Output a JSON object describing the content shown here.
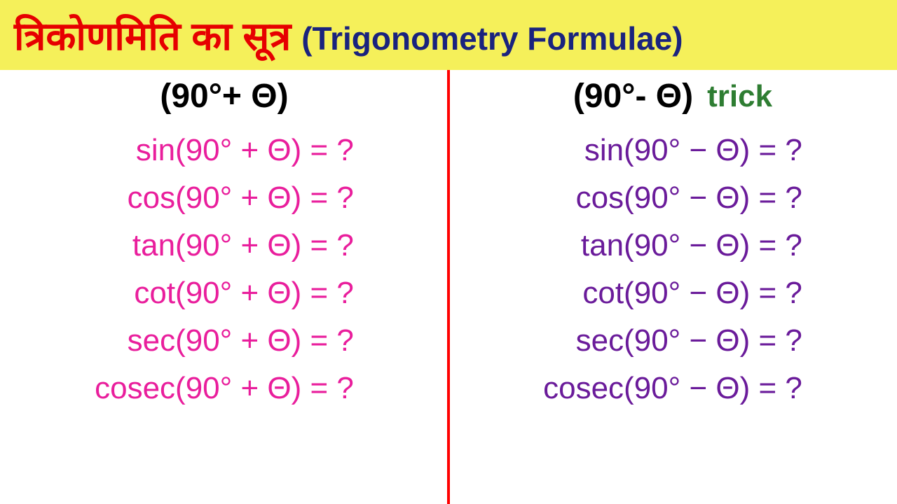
{
  "header": {
    "title_hindi": "त्रिकोणमिति का सूत्र",
    "title_english": "(Trigonometry Formulae)",
    "background_color": "#f5f05a",
    "hindi_color": "#e60000",
    "english_color": "#1a237e"
  },
  "divider_color": "#ff0000",
  "left_column": {
    "header": "(90°+ Θ)",
    "text_color": "#e91e9c",
    "formulas": [
      "sin(90° + Θ) = ?",
      "cos(90° + Θ) = ?",
      "tan(90° + Θ) = ?",
      "cot(90° + Θ) = ?",
      "sec(90° + Θ) = ?",
      "cosec(90° + Θ) = ?"
    ]
  },
  "right_column": {
    "header": "(90°- Θ)",
    "trick_label": "trick",
    "trick_color": "#2e7d32",
    "text_color": "#6a1b9a",
    "formulas": [
      "sin(90° − Θ) = ?",
      "cos(90° − Θ) = ?",
      "tan(90° − Θ) = ?",
      "cot(90° − Θ) = ?",
      "sec(90° − Θ) = ?",
      "cosec(90° − Θ) = ?"
    ]
  }
}
